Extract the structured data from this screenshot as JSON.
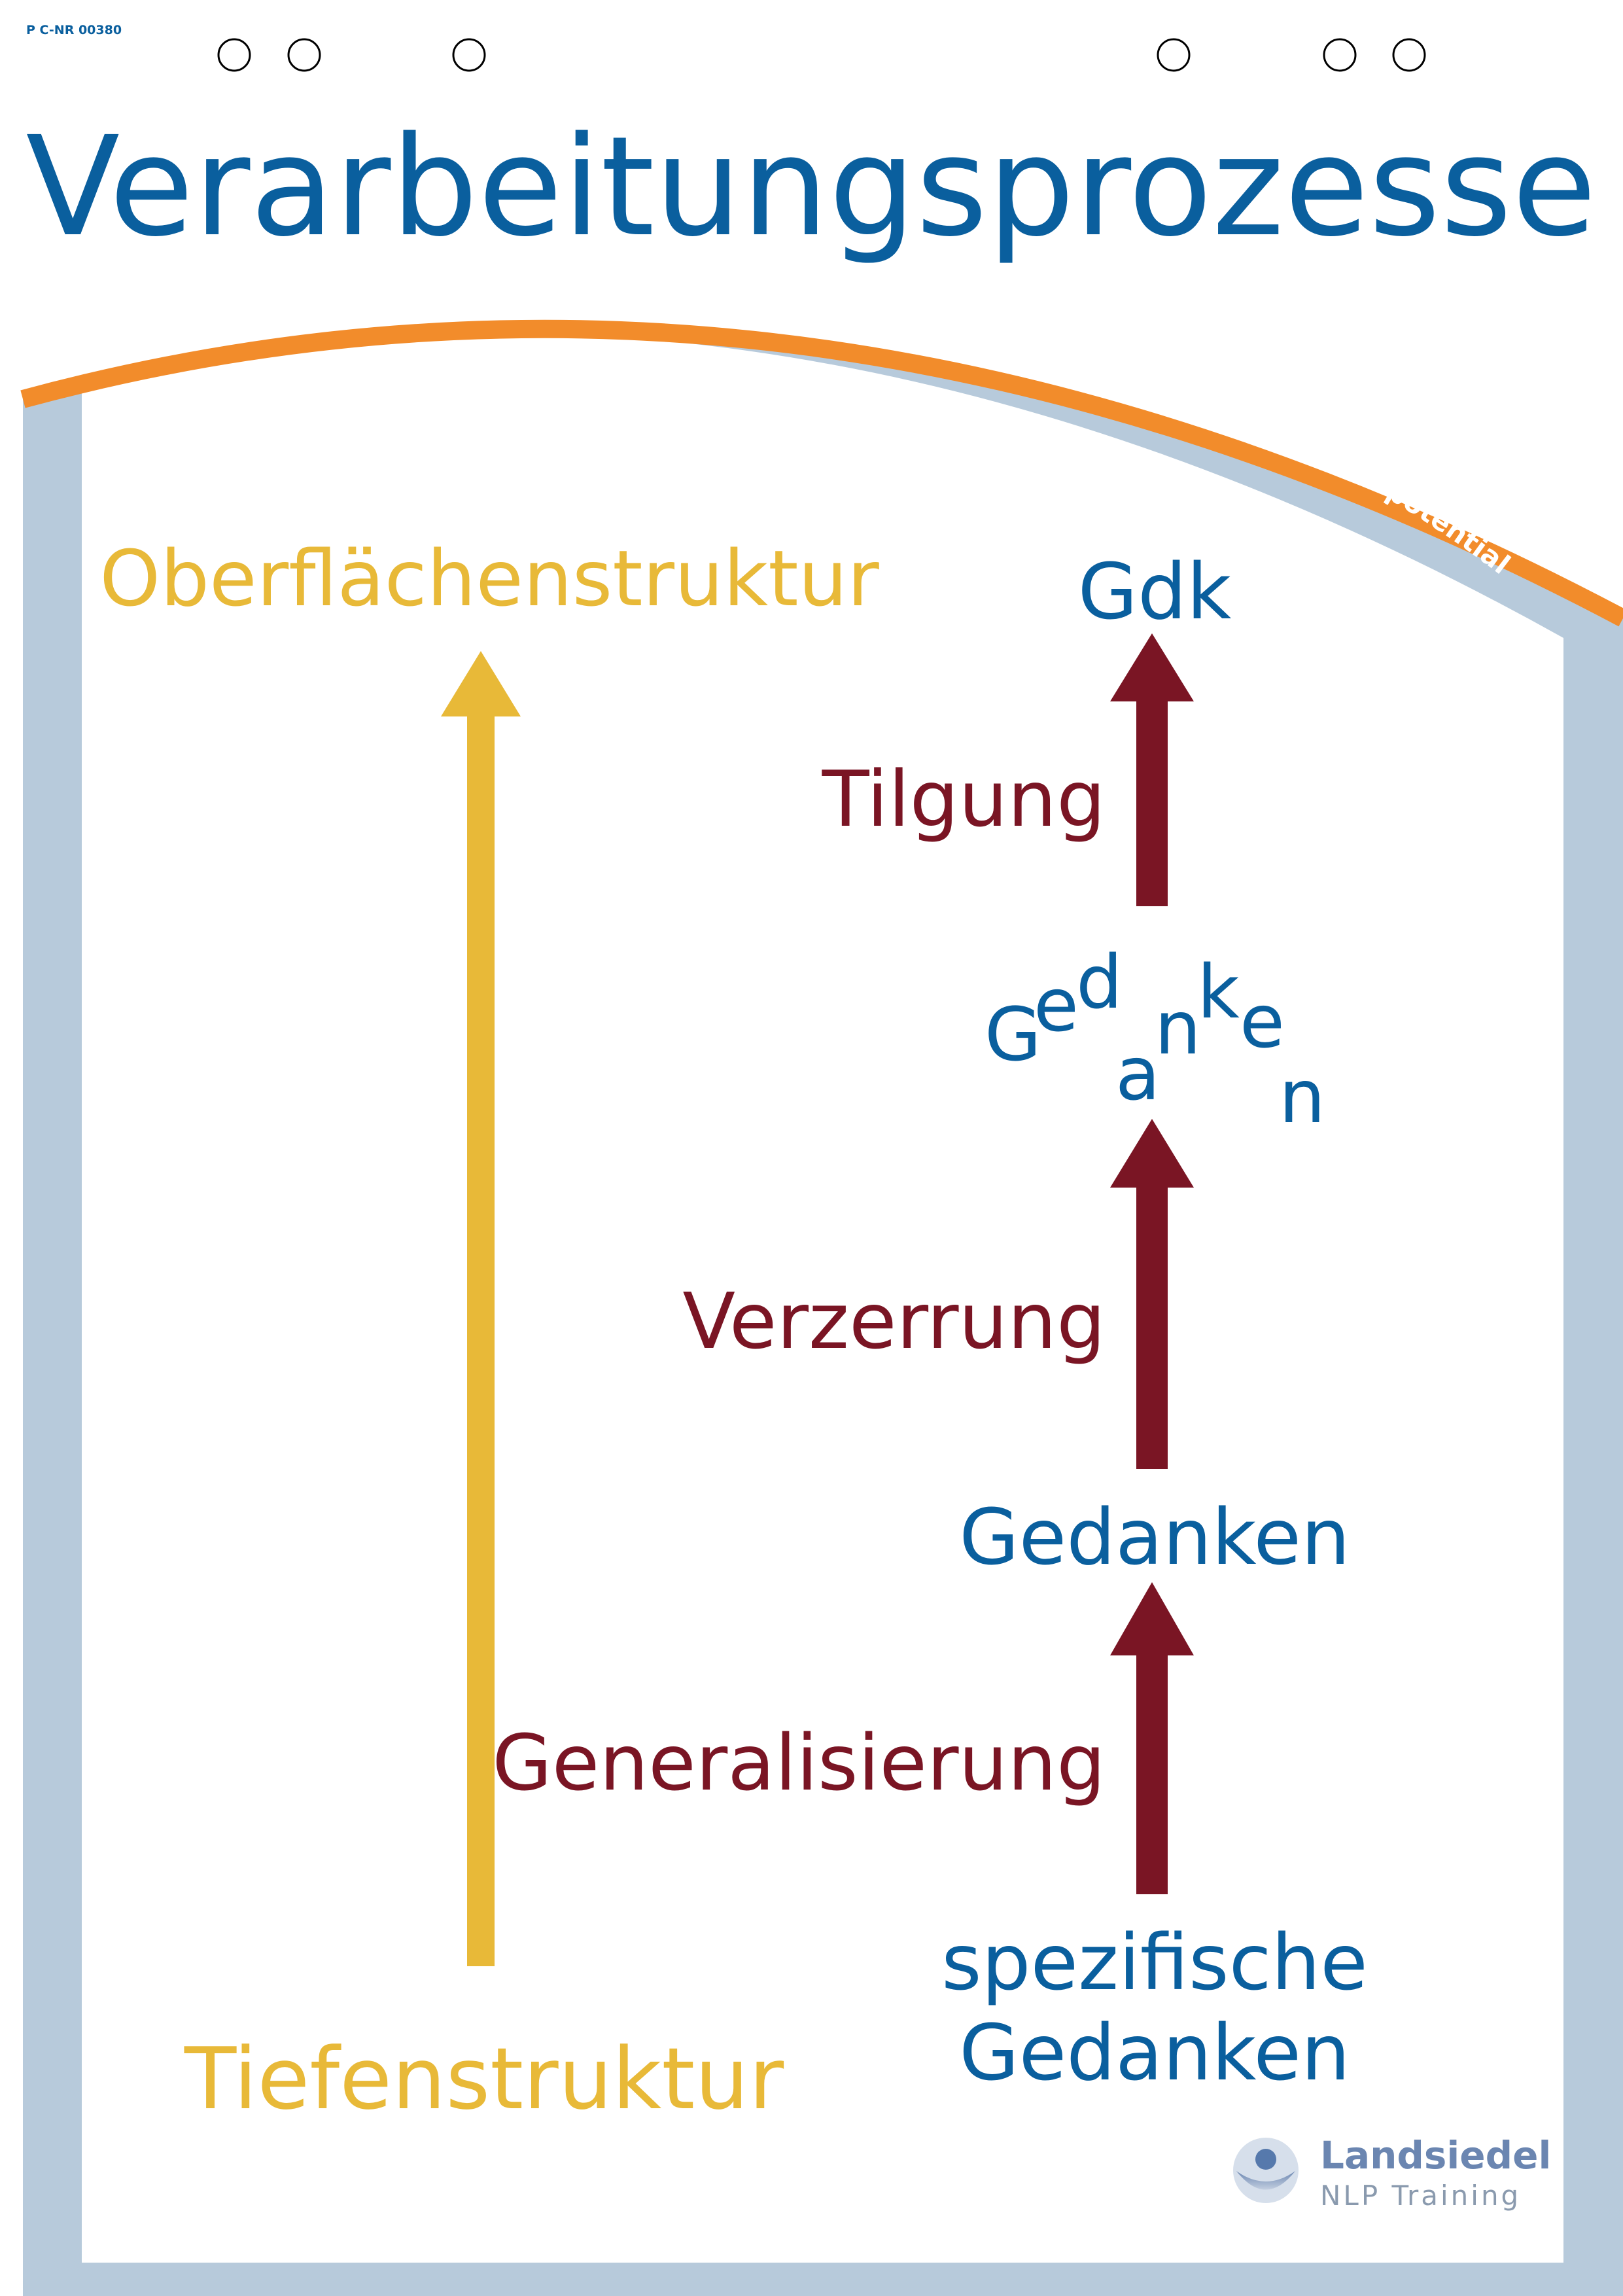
{
  "header": {
    "code": "P C-NR 00380",
    "title": "Verarbeitungsprozesse",
    "tagline": "... empower your potential!"
  },
  "left_column": {
    "top_label": "Oberflächenstruktur",
    "bottom_label": "Tiefenstruktur"
  },
  "right_column": {
    "top_label": "Gdk",
    "process_top": "Tilgung",
    "scattered_word": {
      "letters": [
        "G",
        "e",
        "d",
        "a",
        "n",
        "k",
        "e",
        "n"
      ]
    },
    "process_middle": "Verzerrung",
    "middle_label": "Gedanken",
    "process_bottom": "Generalisierung",
    "bottom_label_line1": "spezifische",
    "bottom_label_line2": "Gedanken"
  },
  "logo": {
    "brand": "Landsiedel",
    "subtitle": "NLP Training"
  },
  "colors": {
    "title_blue": "#0a5f9e",
    "yellow": "#e8b938",
    "dark_red": "#7a1524",
    "orange": "#f28c2b",
    "frame_blue": "#b7cadb",
    "logo_gray": "#8a9aae"
  }
}
